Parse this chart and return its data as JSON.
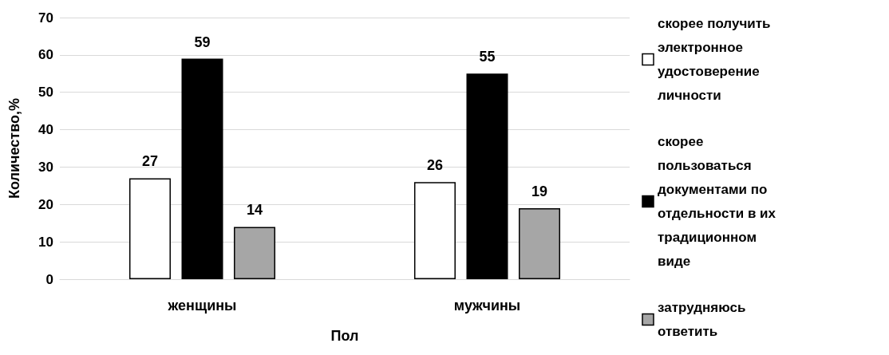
{
  "chart_data": {
    "type": "bar",
    "xlabel": "Пол",
    "ylabel": "Количество,%",
    "categories": [
      "женщины",
      "мужчины"
    ],
    "series": [
      {
        "name": "скорее получить электронное удостоверение личности",
        "color": "#ffffff",
        "values": [
          27,
          26
        ]
      },
      {
        "name": "скорее пользоваться документами по отдельности в их традиционном виде",
        "color": "#000000",
        "values": [
          59,
          55
        ]
      },
      {
        "name": "затрудняюсь ответить",
        "color": "#a6a6a6",
        "values": [
          14,
          19
        ]
      }
    ],
    "ylim": [
      0,
      70
    ],
    "yticks": [
      0,
      10,
      20,
      30,
      40,
      50,
      60,
      70
    ],
    "grid": "y",
    "legend": "right",
    "data_labels": true
  }
}
